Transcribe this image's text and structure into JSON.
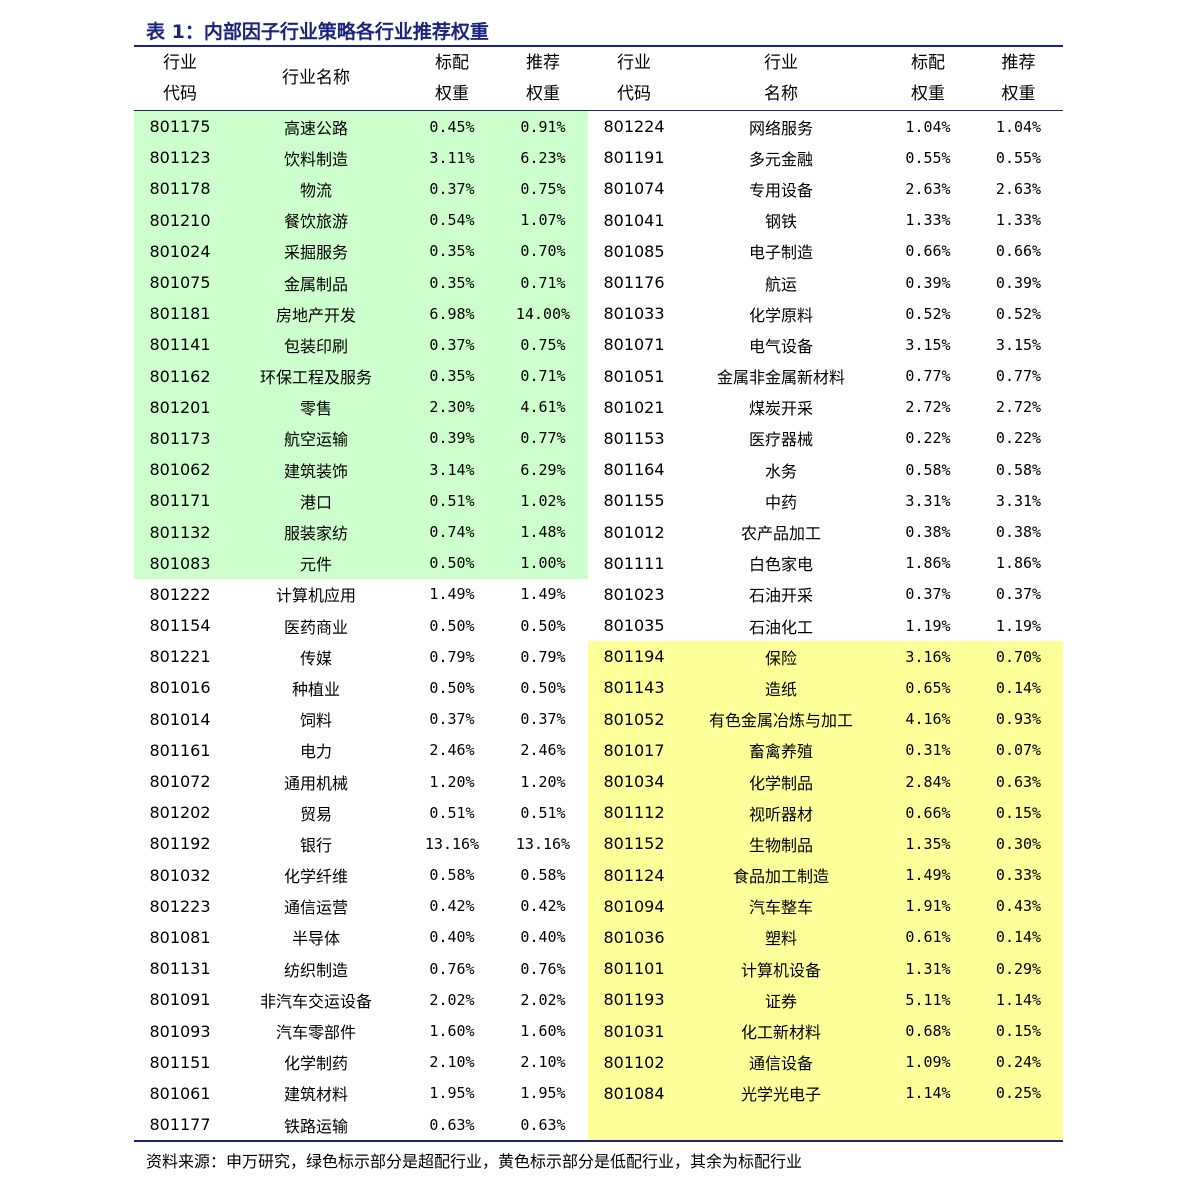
{
  "title": "表 1：内部因子行业策略各行业推荐权重",
  "headers": {
    "code": [
      "行业",
      "代码"
    ],
    "name_left": "行业名称",
    "name_right": [
      "行业",
      "名称"
    ],
    "bench": [
      "标配",
      "权重"
    ],
    "rec": [
      "推荐",
      "权重"
    ]
  },
  "colors": {
    "overweight": "#ccffcc",
    "underweight": "#ffff99",
    "rule": "#1a237e"
  },
  "left_rows": [
    [
      "801175",
      "高速公路",
      "0.45%",
      "0.91%",
      "over"
    ],
    [
      "801123",
      "饮料制造",
      "3.11%",
      "6.23%",
      "over"
    ],
    [
      "801178",
      "物流",
      "0.37%",
      "0.75%",
      "over"
    ],
    [
      "801210",
      "餐饮旅游",
      "0.54%",
      "1.07%",
      "over"
    ],
    [
      "801024",
      "采掘服务",
      "0.35%",
      "0.70%",
      "over"
    ],
    [
      "801075",
      "金属制品",
      "0.35%",
      "0.71%",
      "over"
    ],
    [
      "801181",
      "房地产开发",
      "6.98%",
      "14.00%",
      "over"
    ],
    [
      "801141",
      "包装印刷",
      "0.37%",
      "0.75%",
      "over"
    ],
    [
      "801162",
      "环保工程及服务",
      "0.35%",
      "0.71%",
      "over"
    ],
    [
      "801201",
      "零售",
      "2.30%",
      "4.61%",
      "over"
    ],
    [
      "801173",
      "航空运输",
      "0.39%",
      "0.77%",
      "over"
    ],
    [
      "801062",
      "建筑装饰",
      "3.14%",
      "6.29%",
      "over"
    ],
    [
      "801171",
      "港口",
      "0.51%",
      "1.02%",
      "over"
    ],
    [
      "801132",
      "服装家纺",
      "0.74%",
      "1.48%",
      "over"
    ],
    [
      "801083",
      "元件",
      "0.50%",
      "1.00%",
      "over"
    ],
    [
      "801222",
      "计算机应用",
      "1.49%",
      "1.49%",
      ""
    ],
    [
      "801154",
      "医药商业",
      "0.50%",
      "0.50%",
      ""
    ],
    [
      "801221",
      "传媒",
      "0.79%",
      "0.79%",
      ""
    ],
    [
      "801016",
      "种植业",
      "0.50%",
      "0.50%",
      ""
    ],
    [
      "801014",
      "饲料",
      "0.37%",
      "0.37%",
      ""
    ],
    [
      "801161",
      "电力",
      "2.46%",
      "2.46%",
      ""
    ],
    [
      "801072",
      "通用机械",
      "1.20%",
      "1.20%",
      ""
    ],
    [
      "801202",
      "贸易",
      "0.51%",
      "0.51%",
      ""
    ],
    [
      "801192",
      "银行",
      "13.16%",
      "13.16%",
      ""
    ],
    [
      "801032",
      "化学纤维",
      "0.58%",
      "0.58%",
      ""
    ],
    [
      "801223",
      "通信运营",
      "0.42%",
      "0.42%",
      ""
    ],
    [
      "801081",
      "半导体",
      "0.40%",
      "0.40%",
      ""
    ],
    [
      "801131",
      "纺织制造",
      "0.76%",
      "0.76%",
      ""
    ],
    [
      "801091",
      "非汽车交运设备",
      "2.02%",
      "2.02%",
      ""
    ],
    [
      "801093",
      "汽车零部件",
      "1.60%",
      "1.60%",
      ""
    ],
    [
      "801151",
      "化学制药",
      "2.10%",
      "2.10%",
      ""
    ],
    [
      "801061",
      "建筑材料",
      "1.95%",
      "1.95%",
      ""
    ],
    [
      "801177",
      "铁路运输",
      "0.63%",
      "0.63%",
      ""
    ]
  ],
  "right_rows": [
    [
      "801224",
      "网络服务",
      "1.04%",
      "1.04%",
      ""
    ],
    [
      "801191",
      "多元金融",
      "0.55%",
      "0.55%",
      ""
    ],
    [
      "801074",
      "专用设备",
      "2.63%",
      "2.63%",
      ""
    ],
    [
      "801041",
      "钢铁",
      "1.33%",
      "1.33%",
      ""
    ],
    [
      "801085",
      "电子制造",
      "0.66%",
      "0.66%",
      ""
    ],
    [
      "801176",
      "航运",
      "0.39%",
      "0.39%",
      ""
    ],
    [
      "801033",
      "化学原料",
      "0.52%",
      "0.52%",
      ""
    ],
    [
      "801071",
      "电气设备",
      "3.15%",
      "3.15%",
      ""
    ],
    [
      "801051",
      "金属非金属新材料",
      "0.77%",
      "0.77%",
      ""
    ],
    [
      "801021",
      "煤炭开采",
      "2.72%",
      "2.72%",
      ""
    ],
    [
      "801153",
      "医疗器械",
      "0.22%",
      "0.22%",
      ""
    ],
    [
      "801164",
      "水务",
      "0.58%",
      "0.58%",
      ""
    ],
    [
      "801155",
      "中药",
      "3.31%",
      "3.31%",
      ""
    ],
    [
      "801012",
      "农产品加工",
      "0.38%",
      "0.38%",
      ""
    ],
    [
      "801111",
      "白色家电",
      "1.86%",
      "1.86%",
      ""
    ],
    [
      "801023",
      "石油开采",
      "0.37%",
      "0.37%",
      ""
    ],
    [
      "801035",
      "石油化工",
      "1.19%",
      "1.19%",
      ""
    ],
    [
      "801194",
      "保险",
      "3.16%",
      "0.70%",
      "under"
    ],
    [
      "801143",
      "造纸",
      "0.65%",
      "0.14%",
      "under"
    ],
    [
      "801052",
      "有色金属冶炼与加工",
      "4.16%",
      "0.93%",
      "under"
    ],
    [
      "801017",
      "畜禽养殖",
      "0.31%",
      "0.07%",
      "under"
    ],
    [
      "801034",
      "化学制品",
      "2.84%",
      "0.63%",
      "under"
    ],
    [
      "801112",
      "视听器材",
      "0.66%",
      "0.15%",
      "under"
    ],
    [
      "801152",
      "生物制品",
      "1.35%",
      "0.30%",
      "under"
    ],
    [
      "801124",
      "食品加工制造",
      "1.49%",
      "0.33%",
      "under"
    ],
    [
      "801094",
      "汽车整车",
      "1.91%",
      "0.43%",
      "under"
    ],
    [
      "801036",
      "塑料",
      "0.61%",
      "0.14%",
      "under"
    ],
    [
      "801101",
      "计算机设备",
      "1.31%",
      "0.29%",
      "under"
    ],
    [
      "801193",
      "证券",
      "5.11%",
      "1.14%",
      "under"
    ],
    [
      "801031",
      "化工新材料",
      "0.68%",
      "0.15%",
      "under"
    ],
    [
      "801102",
      "通信设备",
      "1.09%",
      "0.24%",
      "under"
    ],
    [
      "801084",
      "光学光电子",
      "1.14%",
      "0.25%",
      "under"
    ],
    [
      "",
      "",
      "",
      "",
      "under"
    ]
  ],
  "footnote": "资料来源：申万研究，绿色标示部分是超配行业，黄色标示部分是低配行业，其余为标配行业"
}
